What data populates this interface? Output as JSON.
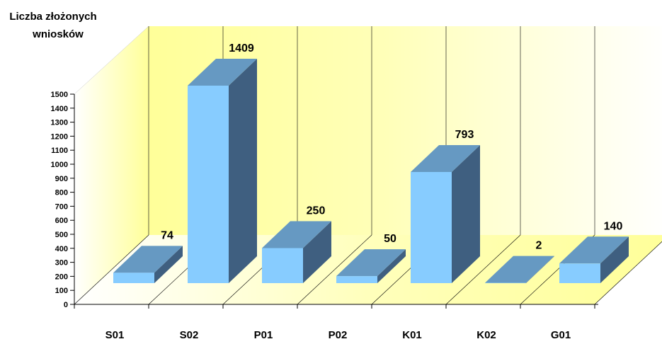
{
  "chart_data": {
    "type": "bar",
    "title": "",
    "xlabel": "",
    "ylabel": [
      "Liczba złożonych",
      "wniosków"
    ],
    "categories": [
      "S01",
      "S02",
      "P01",
      "P02",
      "K01",
      "K02",
      "G01"
    ],
    "values": [
      74,
      1409,
      250,
      50,
      793,
      2,
      140
    ],
    "value_labels": [
      "74",
      "1409",
      "250",
      "50",
      "793",
      "2",
      "140"
    ],
    "y_ticks": [
      "0",
      "100",
      "200",
      "300",
      "400",
      "500",
      "600",
      "700",
      "800",
      "900",
      "1000",
      "1100",
      "1200",
      "1300",
      "1400",
      "1500"
    ],
    "ylim": [
      0,
      1500
    ],
    "grid": true,
    "legend": "none",
    "style": "3d",
    "colors": {
      "bar_front": "#87CCFF",
      "bar_top": "#6699C2",
      "bar_side": "#3F5F80",
      "wall": "#FFFF99",
      "floor": "#FFFF99"
    }
  }
}
